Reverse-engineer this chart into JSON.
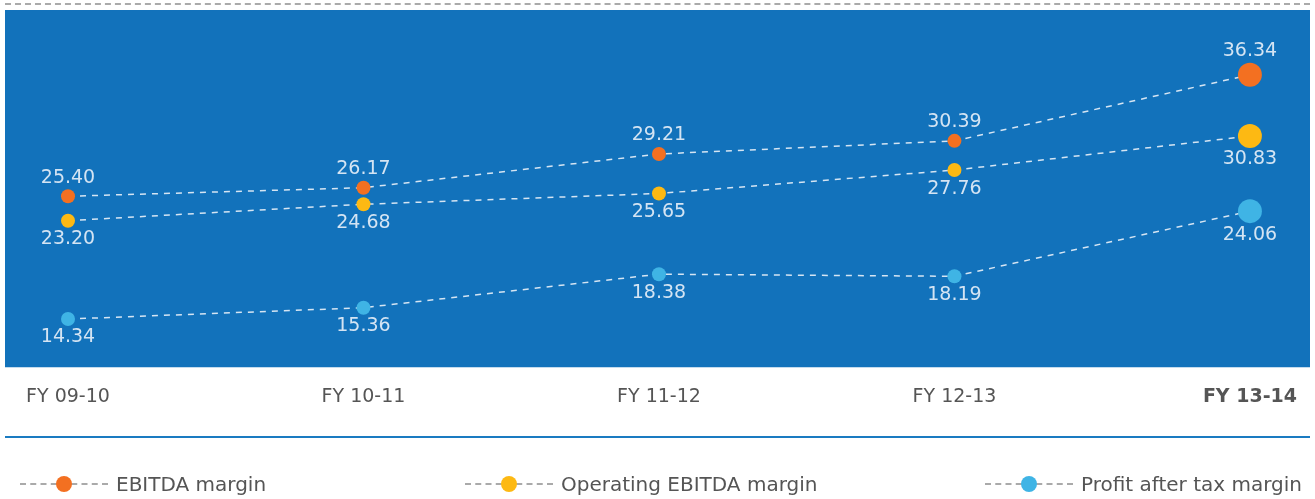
{
  "chart_data": {
    "type": "line",
    "categories": [
      "FY 09-10",
      "FY 10-11",
      "FY 11-12",
      "FY 12-13",
      "FY 13-14"
    ],
    "series": [
      {
        "name": "EBITDA margin",
        "color": "#f37021",
        "values": [
          25.4,
          26.17,
          29.21,
          30.39,
          36.34
        ],
        "value_labels": [
          "25.40",
          "26.17",
          "29.21",
          "30.39",
          "36.34"
        ]
      },
      {
        "name": "Operating EBITDA margin",
        "color": "#fdb913",
        "values": [
          23.2,
          24.68,
          25.65,
          27.76,
          30.83
        ],
        "value_labels": [
          "23.20",
          "24.68",
          "25.65",
          "27.76",
          "30.83"
        ]
      },
      {
        "name": "Profit after tax margin",
        "color": "#3fb4e5",
        "values": [
          14.34,
          15.36,
          18.38,
          18.19,
          24.06
        ],
        "value_labels": [
          "14.34",
          "15.36",
          "18.38",
          "18.19",
          "24.06"
        ]
      }
    ],
    "ylim": [
      10,
      42
    ],
    "tick_labels": "x",
    "grid": false,
    "legend": "bottom",
    "marker": "circle",
    "line_style": "dashed"
  }
}
